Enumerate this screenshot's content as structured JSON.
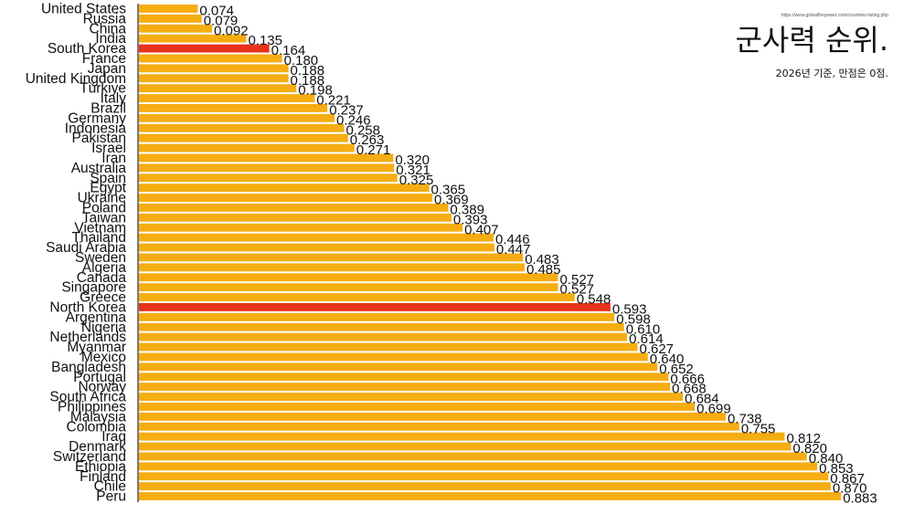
{
  "header": {
    "source_url": "https://www.globalfirepower.com/countries-listing.php",
    "title": "군사력 순위.",
    "subtitle": "2026년 기준, 만점은 0점."
  },
  "colors": {
    "bar": "#f5ad12",
    "highlight": "#e8321c",
    "separator": "#ffffff"
  },
  "chart_data": {
    "type": "bar",
    "orientation": "horizontal",
    "title": "군사력 순위.",
    "subtitle": "2026년 기준, 만점은 0점.",
    "highlighted": [
      "South Korea",
      "North Korea"
    ],
    "xlim": [
      0,
      0.9
    ],
    "categories": [
      "United States",
      "Russia",
      "China",
      "India",
      "South Korea",
      "France",
      "Japan",
      "United Kingdom",
      "Türkiye",
      "Italy",
      "Brazil",
      "Germany",
      "Indonesia",
      "Pakistan",
      "Israel",
      "Iran",
      "Australia",
      "Spain",
      "Egypt",
      "Ukraine",
      "Poland",
      "Taiwan",
      "Vietnam",
      "Thailand",
      "Saudi Arabia",
      "Sweden",
      "Algeria",
      "Canada",
      "Singapore",
      "Greece",
      "North Korea",
      "Argentina",
      "Nigeria",
      "Netherlands",
      "Myanmar",
      "Mexico",
      "Bangladesh",
      "Portugal",
      "Norway",
      "South Africa",
      "Philippines",
      "Malaysia",
      "Colombia",
      "Iraq",
      "Denmark",
      "Switzerland",
      "Ethiopia",
      "Finland",
      "Chile",
      "Peru"
    ],
    "values": [
      0.074,
      0.079,
      0.092,
      0.135,
      0.164,
      0.18,
      0.188,
      0.188,
      0.198,
      0.221,
      0.237,
      0.246,
      0.258,
      0.263,
      0.271,
      0.32,
      0.321,
      0.325,
      0.365,
      0.369,
      0.389,
      0.393,
      0.407,
      0.446,
      0.447,
      0.483,
      0.485,
      0.527,
      0.527,
      0.548,
      0.593,
      0.598,
      0.61,
      0.614,
      0.627,
      0.64,
      0.652,
      0.666,
      0.668,
      0.684,
      0.699,
      0.738,
      0.755,
      0.812,
      0.82,
      0.84,
      0.853,
      0.867,
      0.87,
      0.883
    ],
    "labels": [
      "0.074",
      "0.079",
      "0.092",
      "0.135",
      "0.164",
      "0.180",
      "0.188",
      "0.188",
      "0.198",
      "0.221",
      "0.237",
      "0.246",
      "0.258",
      "0.263",
      "0.271",
      "0.320",
      "0.321",
      "0.325",
      "0.365",
      "0.369",
      "0.389",
      "0.393",
      "0.407",
      "0.446",
      "0.447",
      "0.483",
      "0.485",
      "0.527",
      "0.527",
      "0.548",
      "0.593",
      "0.598",
      "0.610",
      "0.614",
      "0.627",
      "0.640",
      "0.652",
      "0.666",
      "0.668",
      "0.684",
      "0.699",
      "0.738",
      "0.755",
      "0.812",
      "0.820",
      "0.840",
      "0.853",
      "0.867",
      "0.870",
      "0.883"
    ]
  }
}
